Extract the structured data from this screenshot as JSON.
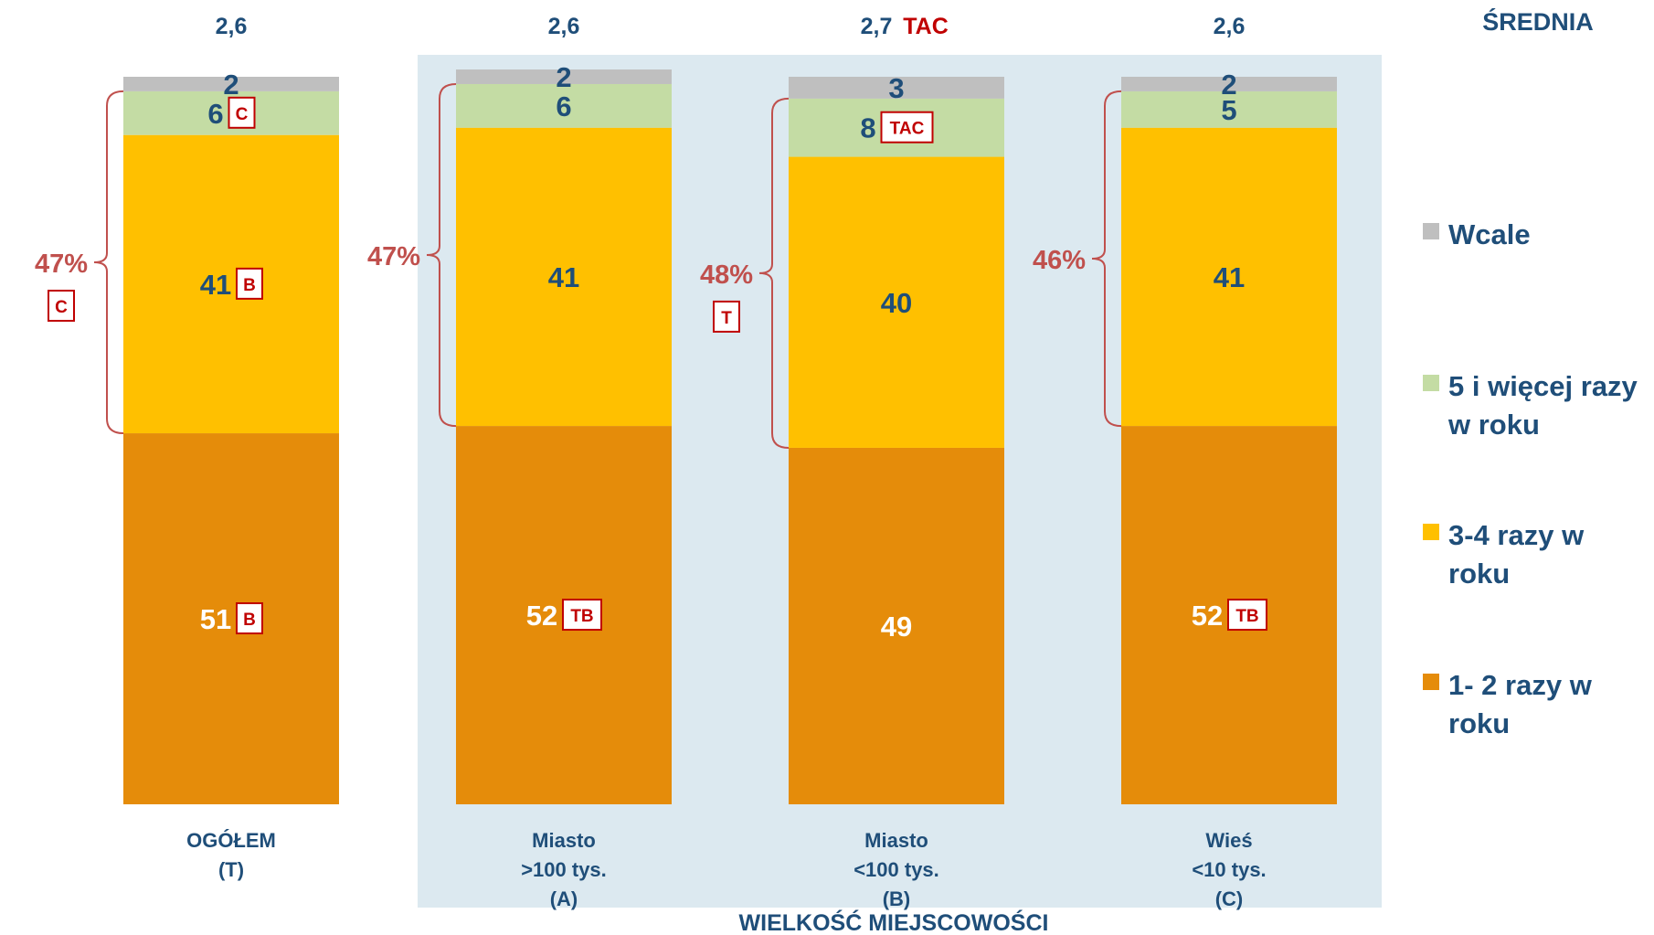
{
  "chart_data": {
    "type": "bar",
    "stacked": true,
    "percent": true,
    "xlabel": "WIELKOŚĆ MIEJSCOWOŚCI",
    "mean_header": "ŚREDNIA",
    "categories": [
      {
        "label": [
          "OGÓŁEM",
          "(T)"
        ],
        "mean": "2,6",
        "mean_flag": "",
        "highlighted": false
      },
      {
        "label": [
          "Miasto",
          ">100 tys.",
          "(A)"
        ],
        "mean": "2,6",
        "mean_flag": "",
        "highlighted": true
      },
      {
        "label": [
          "Miasto",
          "<100 tys.",
          "(B)"
        ],
        "mean": "2,7",
        "mean_flag": "TAC",
        "highlighted": true
      },
      {
        "label": [
          "Wieś",
          "<10 tys.",
          "(C)"
        ],
        "mean": "2,6",
        "mean_flag": "",
        "highlighted": true
      }
    ],
    "series": [
      {
        "name": "1- 2 razy w roku",
        "color": "#e58c0a",
        "label_color": "#ffffff",
        "values": [
          51,
          52,
          49,
          52
        ],
        "flags": [
          "B",
          "TB",
          "",
          "TB"
        ]
      },
      {
        "name": "3-4 razy w roku",
        "color": "#ffc000",
        "label_color": "#1f4e79",
        "values": [
          41,
          41,
          40,
          41
        ],
        "flags": [
          "B",
          "",
          "",
          ""
        ]
      },
      {
        "name": "5 i więcej razy w roku",
        "color": "#c4dca4",
        "label_color": "#1f4e79",
        "values": [
          6,
          6,
          8,
          5
        ],
        "flags": [
          "C",
          "",
          "TAC",
          ""
        ]
      },
      {
        "name": "Wcale",
        "color": "#bfbfbf",
        "label_color": "#1f4e79",
        "values": [
          2,
          2,
          3,
          2
        ],
        "flags": [
          "",
          "",
          "",
          ""
        ]
      }
    ],
    "brackets": [
      {
        "label": "47%",
        "flag": "C"
      },
      {
        "label": "47%",
        "flag": ""
      },
      {
        "label": "48%",
        "flag": "T"
      },
      {
        "label": "46%",
        "flag": ""
      }
    ],
    "legend_order": [
      "Wcale",
      "5 i więcej razy w roku",
      "3-4 razy w roku",
      "1- 2 razy w roku"
    ],
    "ylim": [
      0,
      100
    ],
    "colors": {
      "text": "#1f4e79",
      "accent": "#c0504d",
      "flag": "#c00000",
      "panel": "#dce9f0"
    }
  }
}
